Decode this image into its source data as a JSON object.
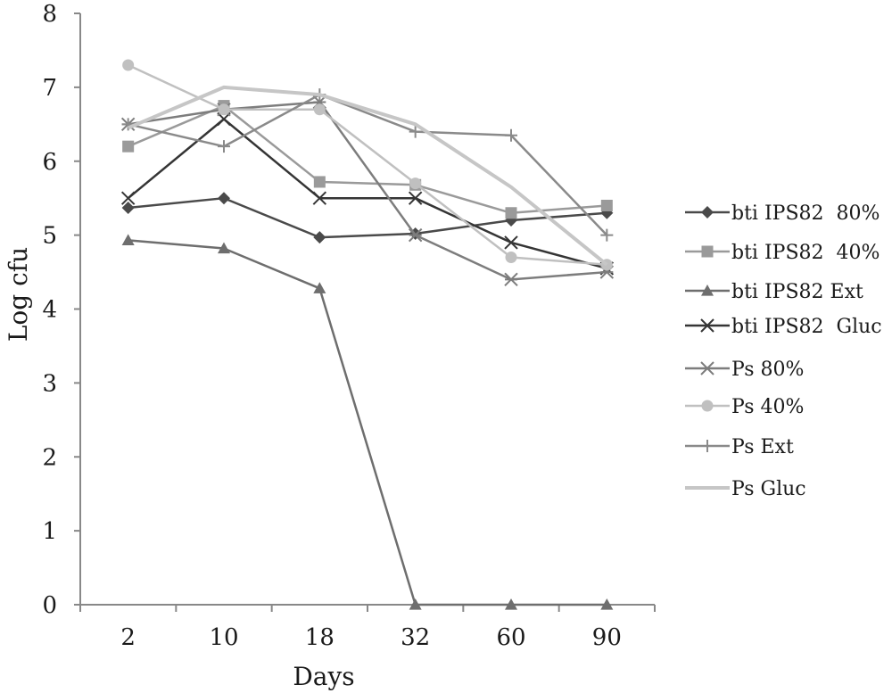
{
  "chart_data": {
    "type": "line",
    "title": "",
    "xlabel": "Days",
    "ylabel": "Log cfu",
    "categories": [
      "2",
      "10",
      "18",
      "32",
      "60",
      "90"
    ],
    "ylim": [
      0,
      8
    ],
    "yticks": [
      "0",
      "1",
      "2",
      "3",
      "4",
      "5",
      "6",
      "7",
      "8"
    ],
    "grid": false,
    "legend_position": "right",
    "series": [
      {
        "name": "bti IPS82  80%",
        "values": [
          5.37,
          5.5,
          4.97,
          5.02,
          5.2,
          5.3
        ],
        "color": "#4a4a4a",
        "marker": "diamond"
      },
      {
        "name": "bti IPS82  40%",
        "values": [
          6.2,
          6.75,
          5.72,
          5.68,
          5.3,
          5.4
        ],
        "color": "#9a9a9a",
        "marker": "square"
      },
      {
        "name": "bti IPS82 Ext",
        "values": [
          4.93,
          4.82,
          4.28,
          0,
          0,
          0
        ],
        "color": "#6e6e6e",
        "marker": "triangle"
      },
      {
        "name": "bti IPS82  Gluc",
        "values": [
          5.5,
          6.57,
          5.5,
          5.5,
          4.9,
          4.55
        ],
        "color": "#353535",
        "marker": "x"
      },
      {
        "name": "Ps 80%",
        "values": [
          6.5,
          6.7,
          6.8,
          5.0,
          4.4,
          4.5
        ],
        "color": "#7d7d7d",
        "marker": "asterisk"
      },
      {
        "name": "Ps 40%",
        "values": [
          7.3,
          6.7,
          6.7,
          5.7,
          4.7,
          4.6
        ],
        "color": "#c0c0c0",
        "marker": "circle"
      },
      {
        "name": "Ps Ext",
        "values": [
          6.5,
          6.2,
          6.9,
          6.4,
          6.35,
          5.0
        ],
        "color": "#8a8a8a",
        "marker": "plus"
      },
      {
        "name": "Ps Gluc",
        "values": [
          6.45,
          7.0,
          6.9,
          6.5,
          5.65,
          4.6
        ],
        "color": "#c6c6c6",
        "marker": "none"
      }
    ]
  }
}
